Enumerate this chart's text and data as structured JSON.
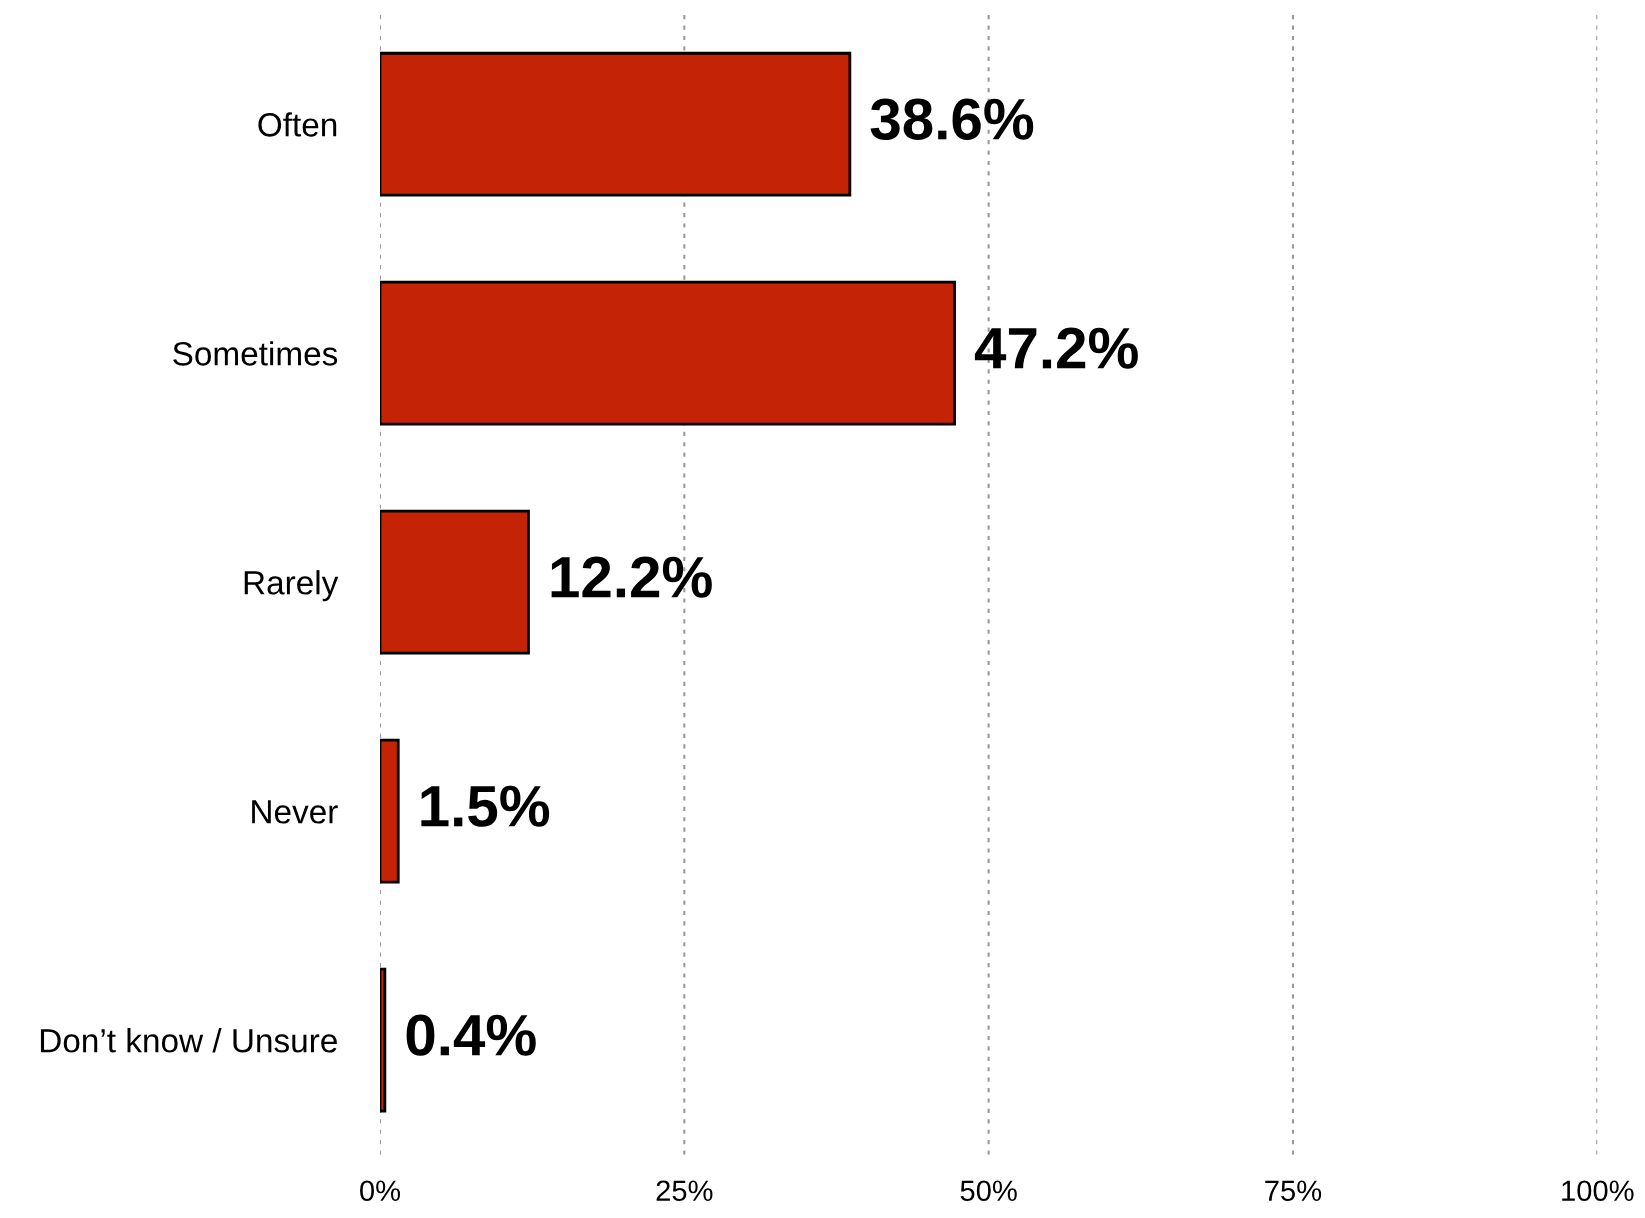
{
  "chart_data": {
    "type": "bar",
    "orientation": "horizontal",
    "categories": [
      "Often",
      "Sometimes",
      "Rarely",
      "Never",
      "Don’t know / Unsure"
    ],
    "values": [
      38.6,
      47.2,
      12.2,
      1.5,
      0.4
    ],
    "value_labels": [
      "38.6%",
      "47.2%",
      "12.2%",
      "1.5%",
      "0.4%"
    ],
    "color": "#c42306",
    "xlim": [
      0,
      100
    ],
    "xticks": [
      {
        "value": 0,
        "label": "0%"
      },
      {
        "value": 25,
        "label": "25%"
      },
      {
        "value": 50,
        "label": "50%"
      },
      {
        "value": 75,
        "label": "75%"
      },
      {
        "value": 100,
        "label": "100%"
      }
    ],
    "grid": "x",
    "line_style": "dotted",
    "legend": false
  }
}
